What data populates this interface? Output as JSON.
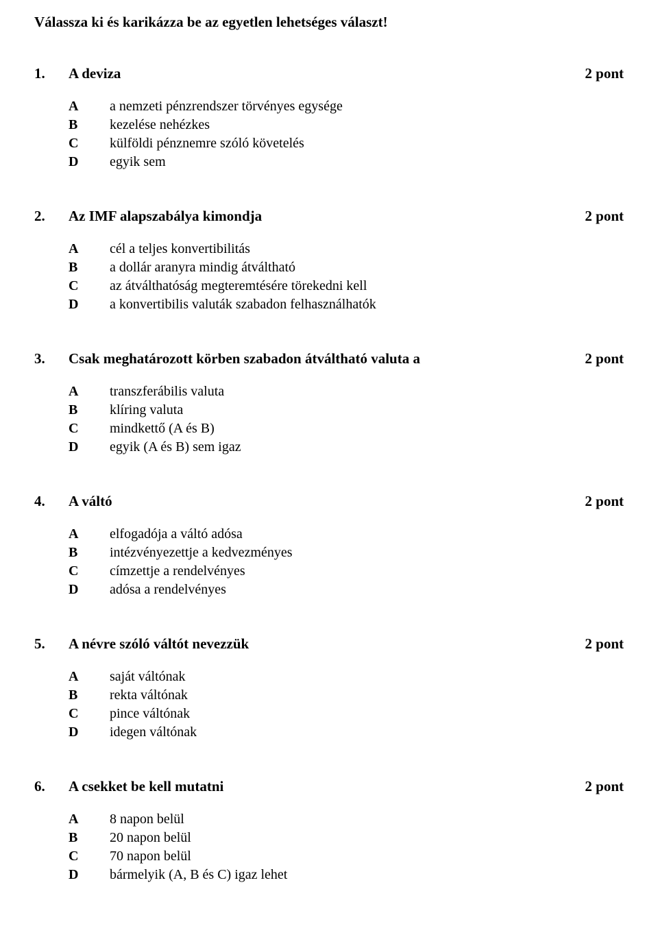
{
  "header": "Válassza ki és karikázza be az egyetlen lehetséges választ!",
  "point_label": "2 pont",
  "option_letters": [
    "A",
    "B",
    "C",
    "D"
  ],
  "questions": [
    {
      "num": "1.",
      "text": "A deviza",
      "options": [
        "a nemzeti pénzrendszer törvényes egysége",
        "kezelése nehézkes",
        "külföldi pénznemre szóló követelés",
        "egyik sem"
      ]
    },
    {
      "num": "2.",
      "text": "Az IMF alapszabálya kimondja",
      "options": [
        "cél a teljes konvertibilitás",
        "a dollár aranyra mindig átváltható",
        "az átválthatóság megteremtésére törekedni kell",
        "a konvertibilis valuták szabadon felhasználhatók"
      ]
    },
    {
      "num": "3.",
      "text": "Csak meghatározott körben szabadon átváltható valuta a",
      "options": [
        "transzferábilis valuta",
        "klíring valuta",
        "mindkettő (A és B)",
        "egyik (A és B) sem igaz"
      ]
    },
    {
      "num": "4.",
      "text": "A váltó",
      "options": [
        "elfogadója a váltó adósa",
        "intézvényezettje a kedvezményes",
        "címzettje a rendelvényes",
        "adósa a rendelvényes"
      ]
    },
    {
      "num": "5.",
      "text": "A névre szóló váltót nevezzük",
      "options": [
        "saját váltónak",
        "rekta váltónak",
        "pince váltónak",
        "idegen váltónak"
      ]
    },
    {
      "num": "6.",
      "text": "A csekket be kell mutatni",
      "options": [
        "8 napon belül",
        "20 napon belül",
        "70 napon belül",
        "bármelyik (A, B és C) igaz lehet"
      ]
    }
  ]
}
